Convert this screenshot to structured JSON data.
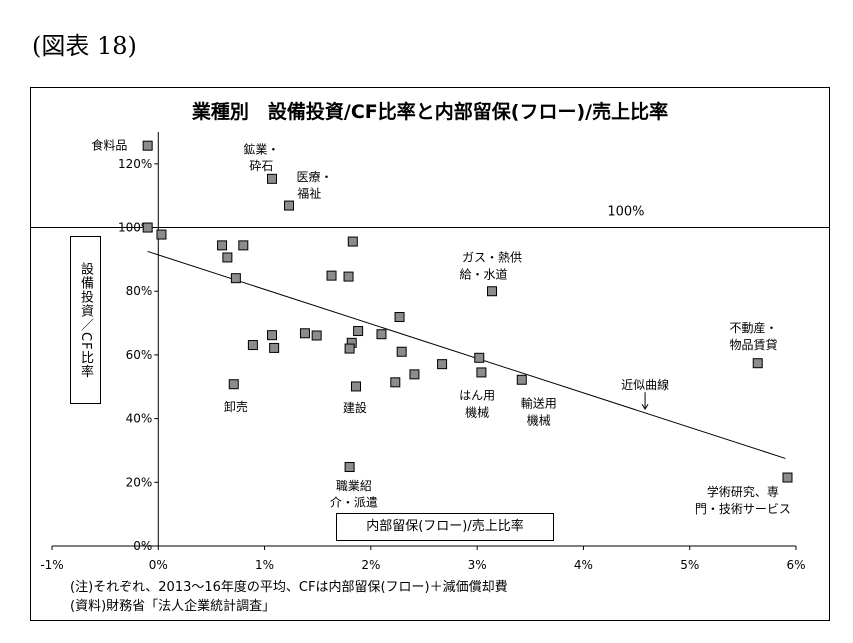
{
  "figure_label": "(図表 18)",
  "notes": [
    "(注)それぞれ、2013～16年度の平均、CFは内部留保(フロー)＋減価償却費",
    "(資料)財務省「法人企業統計調査」"
  ],
  "chart_data": {
    "type": "scatter",
    "title": "業種別　設備投資/CF比率と内部留保(フロー)/売上比率",
    "xlabel": "内部留保(フロー)/売上比率",
    "ylabel": "設備投資／CF比率",
    "xlim": [
      -1,
      6
    ],
    "ylim": [
      0,
      130
    ],
    "x_ticks": [
      -1,
      0,
      1,
      2,
      3,
      4,
      5,
      6
    ],
    "y_ticks": [
      0,
      20,
      40,
      60,
      80,
      100,
      120
    ],
    "x_tick_labels": [
      "-1%",
      "0%",
      "1%",
      "2%",
      "3%",
      "4%",
      "5%",
      "6%"
    ],
    "y_tick_labels": [
      "0%",
      "20%",
      "40%",
      "60%",
      "80%",
      "100%",
      "120%"
    ],
    "reference_line": {
      "y": 100,
      "label": "100%"
    },
    "trendline": {
      "label": "近似曲線",
      "x": [
        -0.1,
        5.9
      ],
      "y": [
        92.5,
        27.5
      ]
    },
    "series": [
      {
        "points": [
          {
            "x": -0.1,
            "y": 125.7
          },
          {
            "x": 1.07,
            "y": 115.3
          },
          {
            "x": 1.23,
            "y": 106.9
          },
          {
            "x": -0.1,
            "y": 100.0
          },
          {
            "x": 0.03,
            "y": 97.8
          },
          {
            "x": 0.6,
            "y": 94.4
          },
          {
            "x": 0.8,
            "y": 94.4
          },
          {
            "x": 0.65,
            "y": 90.6
          },
          {
            "x": 0.73,
            "y": 84.1
          },
          {
            "x": 1.83,
            "y": 95.6
          },
          {
            "x": 1.63,
            "y": 84.9
          },
          {
            "x": 1.79,
            "y": 84.6
          },
          {
            "x": 3.14,
            "y": 80.0
          },
          {
            "x": 2.27,
            "y": 71.9
          },
          {
            "x": 1.88,
            "y": 67.5
          },
          {
            "x": 2.1,
            "y": 66.5
          },
          {
            "x": 1.38,
            "y": 66.8
          },
          {
            "x": 1.49,
            "y": 66.1
          },
          {
            "x": 1.82,
            "y": 63.8
          },
          {
            "x": 1.8,
            "y": 62.0
          },
          {
            "x": 1.07,
            "y": 66.2
          },
          {
            "x": 1.09,
            "y": 62.2
          },
          {
            "x": 0.89,
            "y": 63.1
          },
          {
            "x": 2.29,
            "y": 61.0
          },
          {
            "x": 3.02,
            "y": 59.1
          },
          {
            "x": 2.67,
            "y": 57.1
          },
          {
            "x": 3.04,
            "y": 54.5
          },
          {
            "x": 2.41,
            "y": 53.9
          },
          {
            "x": 2.23,
            "y": 51.4
          },
          {
            "x": 1.86,
            "y": 50.1
          },
          {
            "x": 3.42,
            "y": 52.2
          },
          {
            "x": 0.71,
            "y": 50.8
          },
          {
            "x": 5.64,
            "y": 57.4
          },
          {
            "x": 1.8,
            "y": 24.8
          },
          {
            "x": 5.92,
            "y": 21.5
          }
        ]
      }
    ],
    "annotations": [
      {
        "text": "食料品",
        "x": -0.46,
        "y": 125.7
      },
      {
        "text": "鉱業・",
        "x": 0.97,
        "y": 124.5
      },
      {
        "text": "砕石",
        "x": 0.97,
        "y": 119.3
      },
      {
        "text": "医療・",
        "x": 1.47,
        "y": 115.8
      },
      {
        "text": "福祉",
        "x": 1.42,
        "y": 110.7
      },
      {
        "text": "ガス・熱供",
        "x": 3.14,
        "y": 90.6
      },
      {
        "text": "給・水道",
        "x": 3.06,
        "y": 85.3
      },
      {
        "text": "不動産・",
        "x": 5.6,
        "y": 68.4
      },
      {
        "text": "物品賃貸",
        "x": 5.6,
        "y": 63.1
      },
      {
        "text": "近似曲線",
        "x": 4.58,
        "y": 50.5
      },
      {
        "text": "はん用",
        "x": 3.0,
        "y": 47.2
      },
      {
        "text": "機械",
        "x": 3.0,
        "y": 41.9
      },
      {
        "text": "輸送用",
        "x": 3.58,
        "y": 44.7
      },
      {
        "text": "機械",
        "x": 3.58,
        "y": 39.4
      },
      {
        "text": "卸売",
        "x": 0.73,
        "y": 43.6
      },
      {
        "text": "建設",
        "x": 1.85,
        "y": 43.4
      },
      {
        "text": "職業紹",
        "x": 1.84,
        "y": 18.9
      },
      {
        "text": "介・派遣",
        "x": 1.84,
        "y": 13.6
      },
      {
        "text": "学術研究、専",
        "x": 5.5,
        "y": 17.0
      },
      {
        "text": "門・技術サービス",
        "x": 5.5,
        "y": 11.6
      }
    ]
  }
}
